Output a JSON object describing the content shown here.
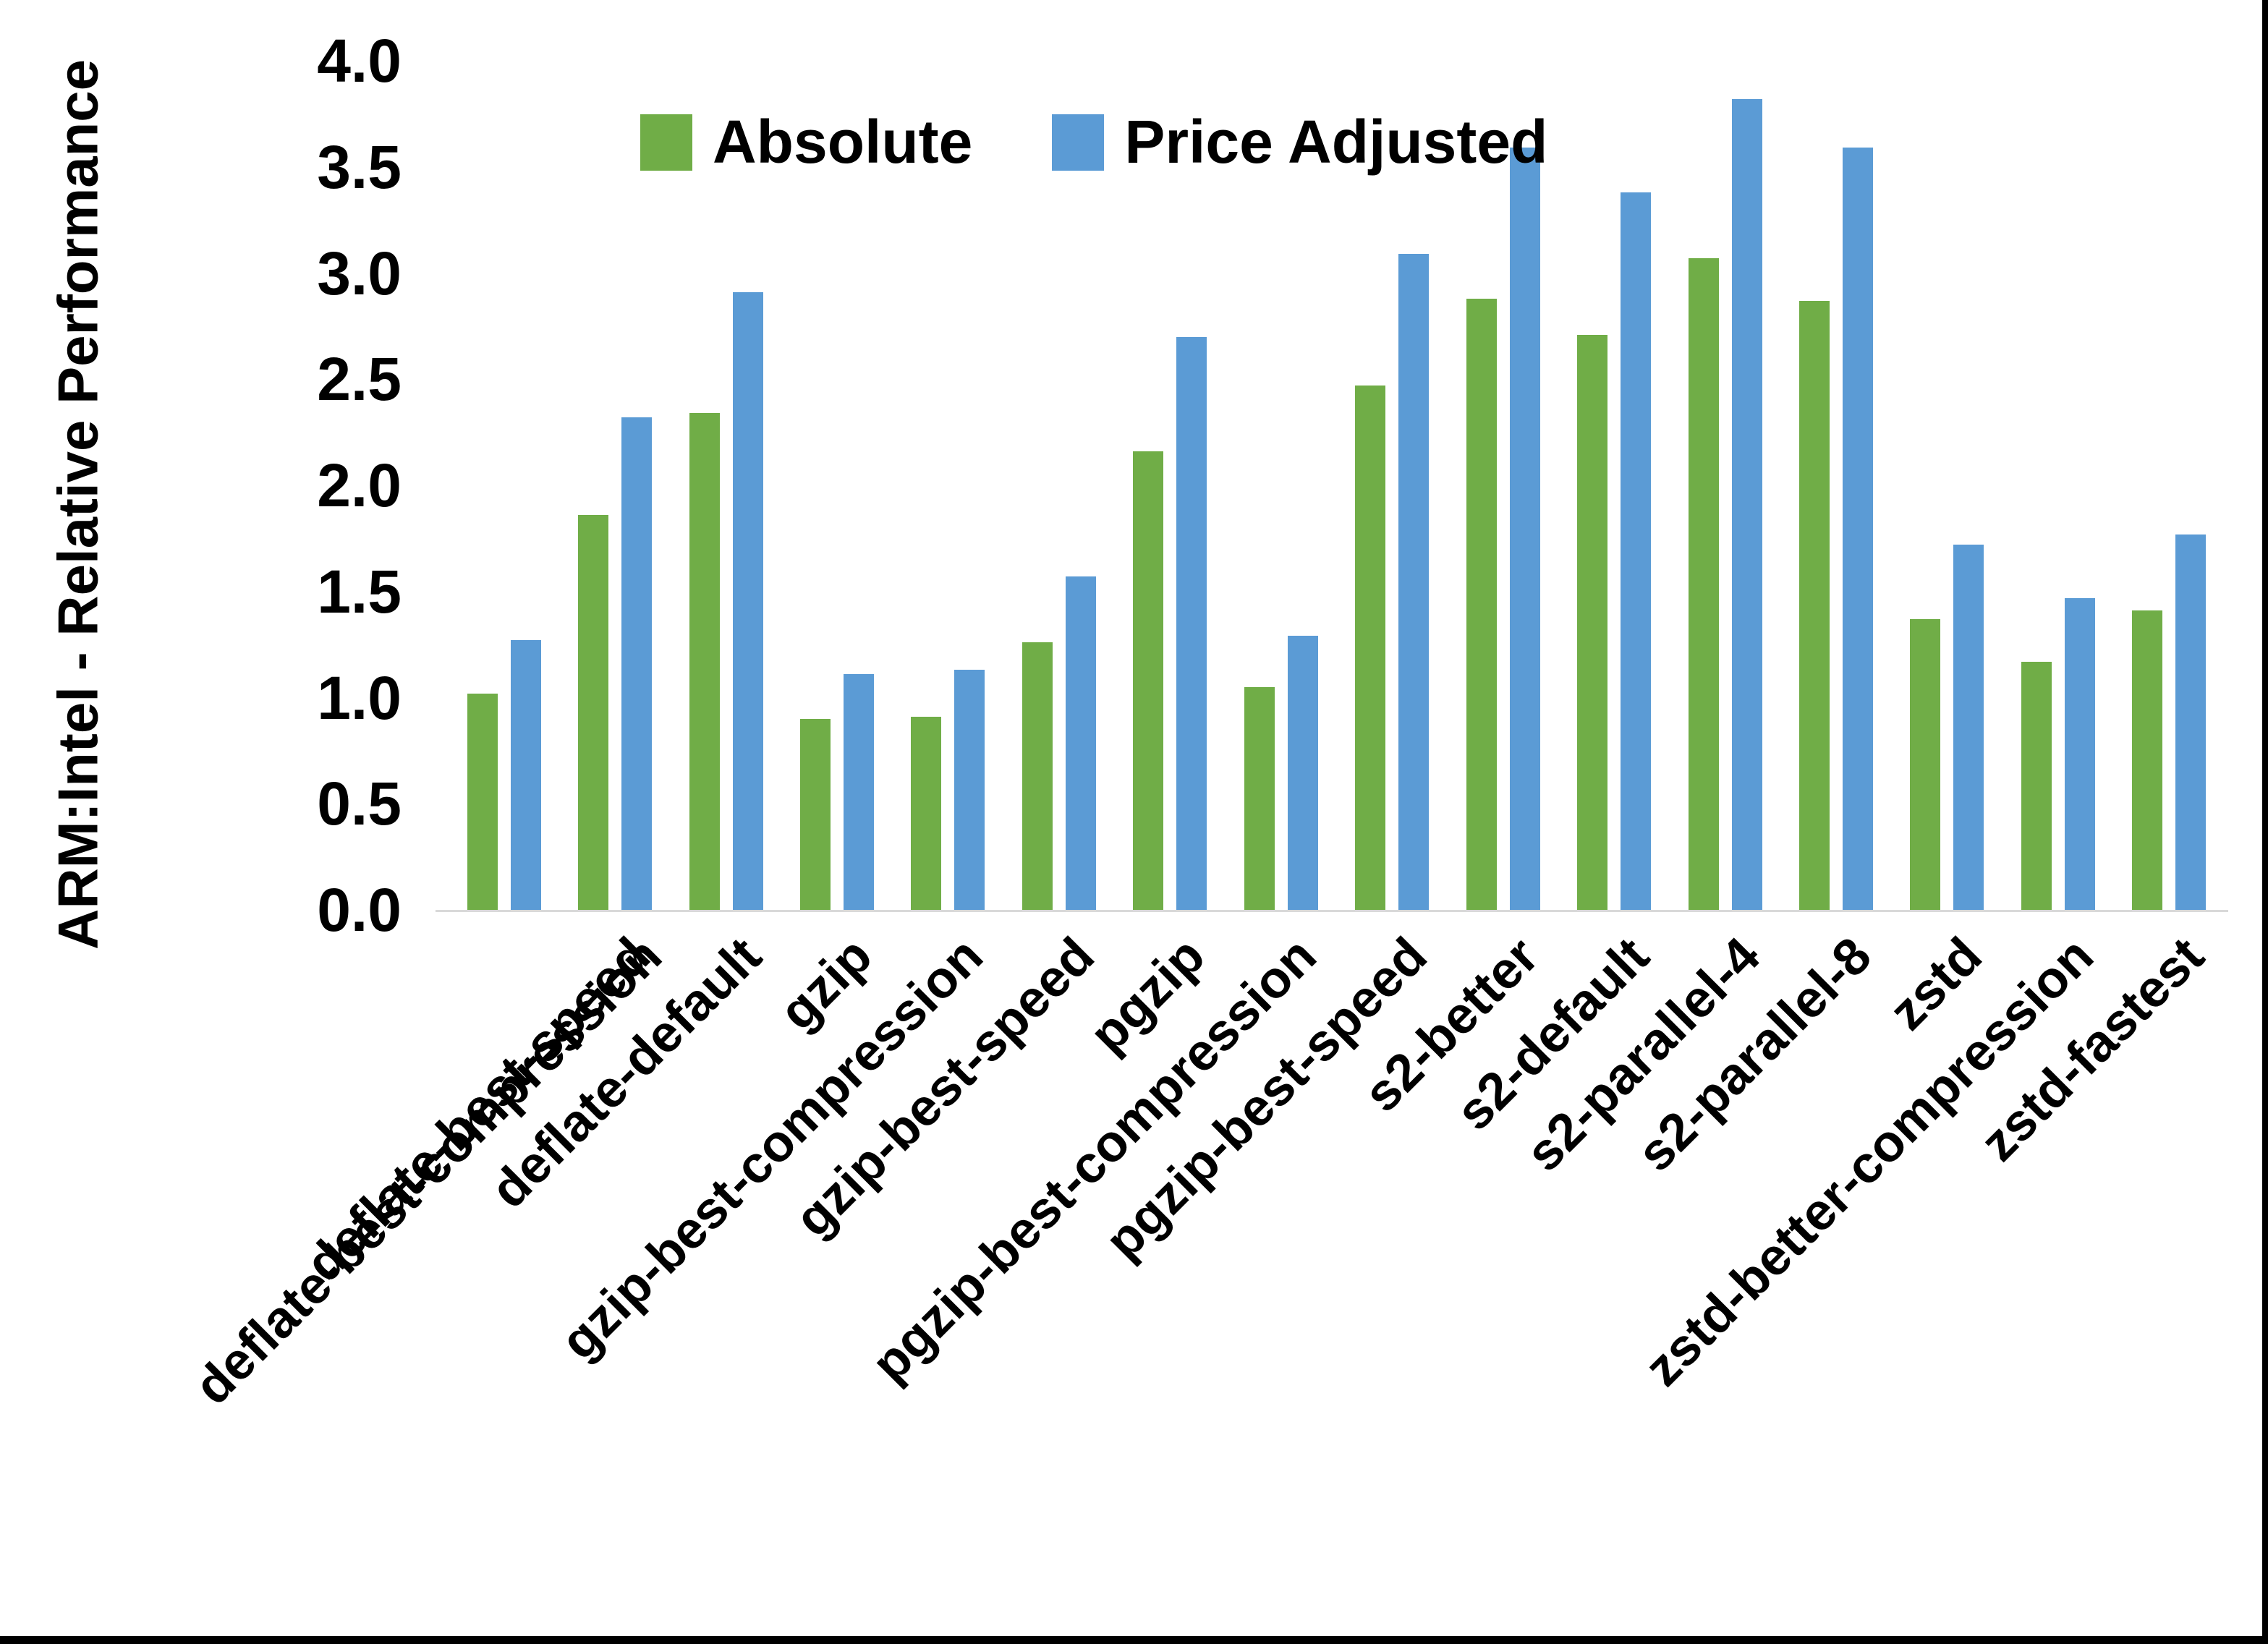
{
  "figure": {
    "background": "#ffffff",
    "frame_color": "#000000",
    "axis_line_color": "#d9d9d9",
    "text_color": "#000000"
  },
  "chart_data": {
    "type": "bar",
    "title": "",
    "xlabel": "",
    "ylabel": "ARM:Intel - Relative Performance",
    "ylim": [
      0.0,
      4.0
    ],
    "yticks": [
      "0.0",
      "0.5",
      "1.0",
      "1.5",
      "2.0",
      "2.5",
      "3.0",
      "3.5",
      "4.0"
    ],
    "grid": false,
    "legend_position": "top-center-inside",
    "categories": [
      "deflate-best-compression",
      "deflate-best-speed",
      "deflate-default",
      "gzip",
      "gzip-best-compression",
      "gzip-best-speed",
      "pgzip",
      "pgzip-best-compression",
      "pgzip-best-speed",
      "s2-better",
      "s2-default",
      "s2-parallel-4",
      "s2-parallel-8",
      "zstd",
      "zstd-better-compression",
      "zstd-fastest"
    ],
    "series": [
      {
        "name": "Absolute",
        "color": "#70AD47",
        "values": [
          1.02,
          1.86,
          2.34,
          0.9,
          0.91,
          1.26,
          2.16,
          1.05,
          2.47,
          2.88,
          2.71,
          3.07,
          2.87,
          1.37,
          1.17,
          1.41
        ]
      },
      {
        "name": "Price Adjusted",
        "color": "#5B9BD5",
        "values": [
          1.27,
          2.32,
          2.91,
          1.11,
          1.13,
          1.57,
          2.7,
          1.29,
          3.09,
          3.59,
          3.38,
          3.82,
          3.59,
          1.72,
          1.47,
          1.77
        ]
      }
    ]
  }
}
